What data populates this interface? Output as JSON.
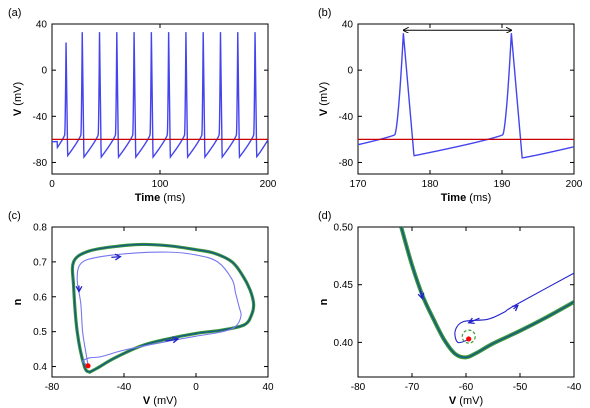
{
  "chart_data": [
    {
      "panel": "(a)",
      "type": "line",
      "xlabel_bold": "Time",
      "xlabel_unit": " (ms)",
      "ylabel_bold": "V",
      "ylabel_unit": " (mV)",
      "xlim": [
        0,
        200
      ],
      "ylim": [
        -90,
        40
      ],
      "xticks": [
        "0",
        "100",
        "200"
      ],
      "yticks": [
        "40",
        "0",
        "-40",
        "-80"
      ],
      "ytick_values": [
        40,
        0,
        -40,
        -80
      ],
      "xtick_values": [
        0,
        100,
        200
      ],
      "spike_times": [
        13,
        28,
        44,
        60,
        76,
        92,
        108,
        124,
        140,
        156,
        172,
        188
      ],
      "spike_peak": 33,
      "first_spike_peak": 24,
      "trough": -75,
      "threshold_line": -60,
      "colors": {
        "trace": "#4444ee",
        "threshold": "#cc0000"
      }
    },
    {
      "panel": "(b)",
      "type": "line",
      "xlabel_bold": "Time",
      "xlabel_unit": " (ms)",
      "ylabel_bold": "V",
      "ylabel_unit": " (mV)",
      "xlim": [
        170,
        200
      ],
      "ylim": [
        -90,
        40
      ],
      "xticks": [
        "170",
        "180",
        "190",
        "200"
      ],
      "xtick_values": [
        170,
        180,
        190,
        200
      ],
      "yticks": [
        "40",
        "0",
        "-40",
        "-80"
      ],
      "ytick_values": [
        40,
        0,
        -40,
        -80
      ],
      "spike_times": [
        176.3,
        191.3
      ],
      "spike_peak": 32,
      "trough": -76,
      "threshold_line": -60,
      "period_arrow": [
        176.3,
        191.3
      ],
      "colors": {
        "trace": "#4444ee",
        "threshold": "#cc0000",
        "arrow": "#000000"
      }
    },
    {
      "panel": "(c)",
      "type": "line",
      "xlabel_bold": "V",
      "xlabel_unit": " (mV)",
      "ylabel_bold": "n",
      "ylabel_unit": "",
      "xlim": [
        -80,
        40
      ],
      "ylim": [
        0.37,
        0.8
      ],
      "xticks": [
        "-80",
        "-40",
        "0",
        "40"
      ],
      "xtick_values": [
        -80,
        -40,
        0,
        40
      ],
      "yticks": [
        "0.8",
        "0.7",
        "0.6",
        "0.5",
        "0.4"
      ],
      "ytick_values": [
        0.8,
        0.7,
        0.6,
        0.5,
        0.4
      ],
      "limit_cycle": [
        [
          -59,
          0.384
        ],
        [
          -62,
          0.4
        ],
        [
          -66,
          0.5
        ],
        [
          -68,
          0.63
        ],
        [
          -68,
          0.7
        ],
        [
          -60,
          0.73
        ],
        [
          -45,
          0.744
        ],
        [
          -30,
          0.75
        ],
        [
          -15,
          0.746
        ],
        [
          0,
          0.735
        ],
        [
          10,
          0.725
        ],
        [
          20,
          0.7
        ],
        [
          26,
          0.66
        ],
        [
          30,
          0.62
        ],
        [
          32,
          0.58
        ],
        [
          31,
          0.55
        ],
        [
          27,
          0.52
        ],
        [
          15,
          0.505
        ],
        [
          0,
          0.495
        ],
        [
          -15,
          0.48
        ],
        [
          -30,
          0.46
        ],
        [
          -45,
          0.425
        ],
        [
          -55,
          0.395
        ],
        [
          -59,
          0.384
        ]
      ],
      "transient": [
        [
          -60,
          0.404
        ],
        [
          -63,
          0.415
        ],
        [
          -59,
          0.425
        ],
        [
          -53,
          0.428
        ],
        [
          -40,
          0.447
        ],
        [
          -20,
          0.468
        ],
        [
          0,
          0.487
        ],
        [
          15,
          0.5
        ],
        [
          22,
          0.515
        ],
        [
          25,
          0.545
        ],
        [
          24,
          0.57
        ],
        [
          22,
          0.61
        ],
        [
          20,
          0.65
        ],
        [
          12,
          0.7
        ],
        [
          0,
          0.72
        ],
        [
          -15,
          0.728
        ],
        [
          -35,
          0.725
        ],
        [
          -55,
          0.713
        ],
        [
          -64,
          0.695
        ],
        [
          -66,
          0.65
        ],
        [
          -64,
          0.58
        ],
        [
          -63,
          0.5
        ],
        [
          -61,
          0.435
        ],
        [
          -60,
          0.405
        ]
      ],
      "fixed_point": [
        -60,
        0.402
      ],
      "arrows": [
        [
          -47,
          0.713,
          -42,
          0.715
        ],
        [
          -65,
          0.632,
          -65,
          0.615
        ],
        [
          -17,
          0.473,
          -10,
          0.479
        ]
      ],
      "colors": {
        "limit_cycle_outer": "#3a9a3a",
        "limit_cycle_inner": "#1a5a80",
        "transient": "#7777ee",
        "fixed_point": "#ff0000",
        "arrow": "#2222cc"
      }
    },
    {
      "panel": "(d)",
      "type": "line",
      "xlabel_bold": "V",
      "xlabel_unit": " (mV)",
      "ylabel_bold": "n",
      "ylabel_unit": "",
      "xlim": [
        -80,
        -40
      ],
      "ylim": [
        0.37,
        0.5
      ],
      "xticks": [
        "-80",
        "-70",
        "-60",
        "-50",
        "-40"
      ],
      "xtick_values": [
        -80,
        -70,
        -60,
        -50,
        -40
      ],
      "yticks": [
        "0.50",
        "0.45",
        "0.40"
      ],
      "ytick_values": [
        0.5,
        0.45,
        0.4
      ],
      "nullcline": [
        [
          -72,
          0.5
        ],
        [
          -70,
          0.467
        ],
        [
          -68,
          0.44
        ],
        [
          -66,
          0.42
        ],
        [
          -64,
          0.402
        ],
        [
          -62,
          0.39
        ],
        [
          -60,
          0.387
        ],
        [
          -58,
          0.391
        ],
        [
          -55,
          0.399
        ],
        [
          -50,
          0.41
        ],
        [
          -45,
          0.422
        ],
        [
          -40,
          0.435
        ]
      ],
      "trajectory": [
        [
          -59.3,
          0.403
        ],
        [
          -61.5,
          0.4
        ],
        [
          -62,
          0.41
        ],
        [
          -60.5,
          0.418
        ],
        [
          -56,
          0.42
        ],
        [
          -53,
          0.426
        ],
        [
          -51,
          0.432
        ],
        [
          -40,
          0.46
        ]
      ],
      "fixed_point": [
        -59.5,
        0.403
      ],
      "circle_center": [
        -59.5,
        0.405
      ],
      "circle_radius_mv": 1.2,
      "arrows": [
        [
          -68.5,
          0.445,
          -68.1,
          0.438
        ],
        [
          -57.5,
          0.421,
          -59.5,
          0.417
        ],
        [
          -51.2,
          0.429,
          -50.4,
          0.432
        ]
      ],
      "colors": {
        "nullcline_outer": "#3a9a3a",
        "nullcline_inner": "#1a5a80",
        "trajectory": "#2222cc",
        "fixed_point": "#ff0000",
        "circle": "#3a9a3a",
        "arrow": "#2222cc"
      }
    }
  ]
}
